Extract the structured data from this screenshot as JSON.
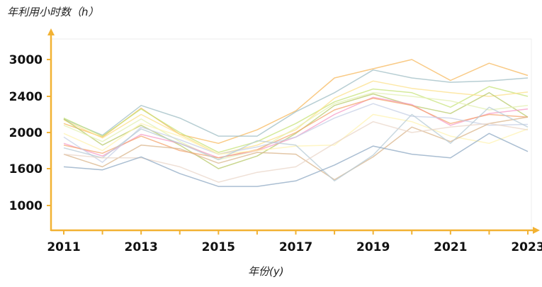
{
  "chart_data": {
    "type": "line",
    "ylabel": "年利用小时数（h）",
    "xlabel": "年份(y)",
    "x": [
      2011,
      2012,
      2013,
      2014,
      2015,
      2016,
      2017,
      2018,
      2019,
      2020,
      2021,
      2022,
      2023
    ],
    "x_tick_labels": [
      "2011",
      "2013",
      "2015",
      "2017",
      "2019",
      "2021",
      "2023"
    ],
    "y_tick_labels": [
      "1000",
      "1600",
      "2000",
      "2400",
      "3000"
    ],
    "y_tick_values": [
      1000,
      1600,
      2000,
      2400,
      3000
    ],
    "grid": false,
    "series": [
      {
        "color": "#f7b85c",
        "values": [
          2100,
          1950,
          2270,
          1980,
          1880,
          2030,
          2240,
          2700,
          2850,
          3000,
          2660,
          2940,
          2740
        ]
      },
      {
        "color": "#9fbdc4",
        "values": [
          2150,
          1970,
          2300,
          2160,
          1960,
          1960,
          2230,
          2460,
          2830,
          2700,
          2630,
          2650,
          2700
        ]
      },
      {
        "color": "#c7e37a",
        "values": [
          2160,
          1960,
          2260,
          2000,
          1780,
          1900,
          2100,
          2340,
          2520,
          2460,
          2280,
          2560,
          2400
        ]
      },
      {
        "color": "#fce08a",
        "values": [
          2140,
          1940,
          2200,
          1980,
          1760,
          1860,
          2030,
          2380,
          2650,
          2530,
          2460,
          2400,
          2470
        ]
      },
      {
        "color": "#b8c96a",
        "values": [
          2150,
          1860,
          2080,
          1860,
          1600,
          1740,
          1990,
          2300,
          2440,
          2300,
          2210,
          2460,
          2170
        ]
      },
      {
        "color": "#e3f0b2",
        "values": [
          2080,
          1900,
          2150,
          1900,
          1700,
          1800,
          2050,
          2320,
          2460,
          2400,
          2350,
          2250,
          2300
        ]
      },
      {
        "color": "#f59ac6",
        "values": [
          1880,
          1740,
          1980,
          1880,
          1720,
          1800,
          1950,
          2200,
          2390,
          2310,
          2080,
          2210,
          2260
        ]
      },
      {
        "color": "#f4a46c",
        "values": [
          1860,
          1770,
          1960,
          1800,
          1720,
          1810,
          2000,
          2250,
          2380,
          2300,
          2100,
          2200,
          2170
        ]
      },
      {
        "color": "#c5cfe6",
        "values": [
          1950,
          1670,
          2060,
          1920,
          1760,
          1840,
          1950,
          2160,
          2320,
          2180,
          2160,
          2080,
          2090
        ]
      },
      {
        "color": "#fff3b0",
        "values": [
          1990,
          1800,
          2100,
          1960,
          1760,
          1800,
          1850,
          1860,
          2200,
          2120,
          1960,
          1880,
          2040
        ]
      },
      {
        "color": "#d9b48a",
        "values": [
          1760,
          1620,
          1860,
          1820,
          1660,
          1780,
          1760,
          1420,
          1730,
          2060,
          1900,
          2100,
          2170
        ]
      },
      {
        "color": "#b7cbd6",
        "values": [
          1830,
          1720,
          2040,
          1880,
          1700,
          1910,
          1860,
          1400,
          1750,
          2200,
          1880,
          2280,
          2060
        ]
      },
      {
        "color": "#ead6c8",
        "values": [
          1760,
          1720,
          1720,
          1620,
          1380,
          1540,
          1620,
          1880,
          2120,
          2000,
          2060,
          2100,
          2030
        ]
      },
      {
        "color": "#8ea8c3",
        "values": [
          1620,
          1580,
          1730,
          1520,
          1310,
          1310,
          1400,
          1640,
          1850,
          1760,
          1720,
          1990,
          1790
        ]
      }
    ]
  }
}
